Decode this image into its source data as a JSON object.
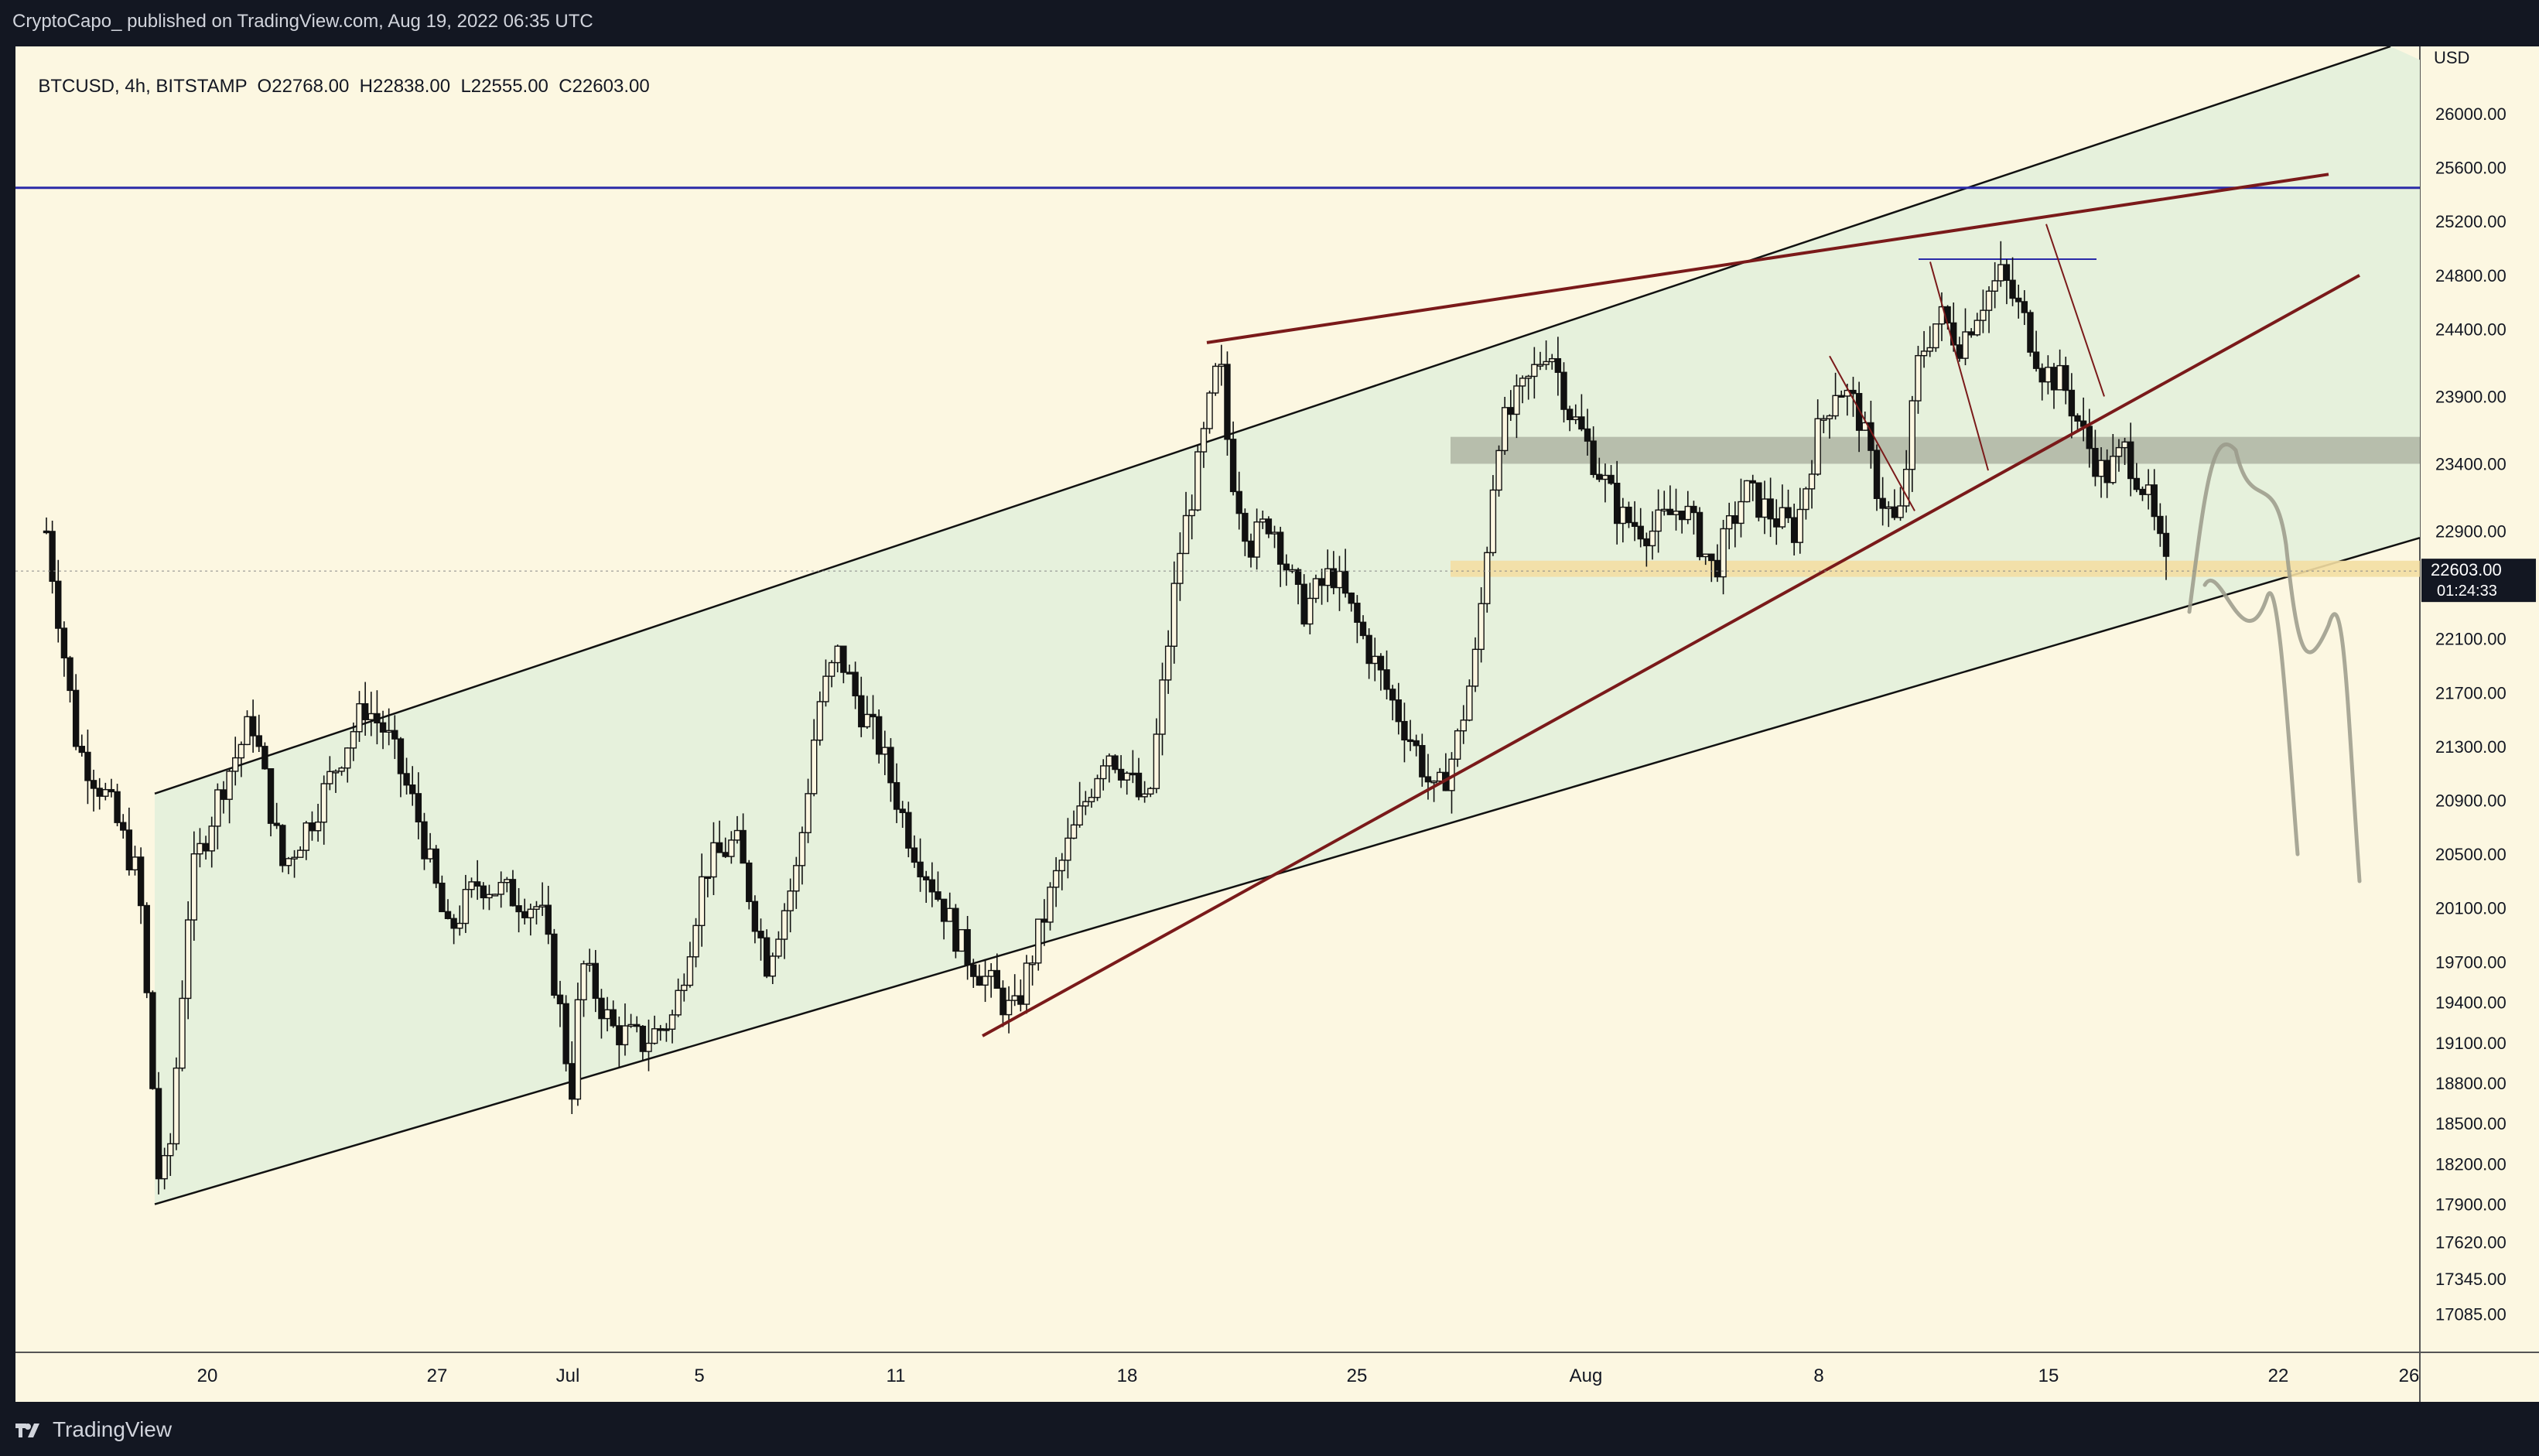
{
  "header": {
    "published_line": "CryptoCapo_  published on TradingView.com, Aug 19, 2022 06:35 UTC"
  },
  "legend": {
    "symbol": "BTCUSD",
    "interval": "4h",
    "exchange": "BITSTAMP",
    "open": "O22768.00",
    "high": "H22838.00",
    "low": "L22555.00",
    "close": "C22603.00"
  },
  "footer": {
    "brand": "TradingView",
    "logo_icon": "tradingview-logo-icon"
  },
  "colors": {
    "background": "#fcf7e1",
    "channel_fill": "#e6f1dc",
    "blue_line": "#2a2aa8",
    "maroon_line": "#7a1a1a",
    "grey_zone": "#a7ac9c",
    "yellow_zone": "#f3dea3",
    "candle": "#111111",
    "drawing": "#9a9a8a"
  },
  "chart_data": {
    "type": "candlestick",
    "symbol": "BTCUSD",
    "currency": "USD",
    "price_axis": {
      "unit": "USD",
      "ticks": [
        "26000.00",
        "25600.00",
        "25200.00",
        "24800.00",
        "24400.00",
        "23900.00",
        "23400.00",
        "22900.00",
        "22100.00",
        "21700.00",
        "21300.00",
        "20900.00",
        "20500.00",
        "20100.00",
        "19700.00",
        "19400.00",
        "19100.00",
        "18800.00",
        "18500.00",
        "18200.00",
        "17900.00",
        "17620.00",
        "17345.00",
        "17085.00"
      ],
      "last_price": "22603.00",
      "countdown": "01:24:33"
    },
    "time_axis": {
      "ticks": [
        "20",
        "27",
        "Jul",
        "5",
        "11",
        "18",
        "25",
        "Aug",
        "8",
        "15",
        "22",
        "26"
      ]
    },
    "candles_close_path": [
      [
        0,
        22900
      ],
      [
        6,
        21300
      ],
      [
        12,
        20900
      ],
      [
        18,
        20300
      ],
      [
        22,
        18000
      ],
      [
        24,
        18300
      ],
      [
        28,
        20300
      ],
      [
        34,
        21000
      ],
      [
        40,
        21500
      ],
      [
        46,
        20400
      ],
      [
        52,
        20800
      ],
      [
        58,
        21300
      ],
      [
        62,
        21600
      ],
      [
        66,
        21400
      ],
      [
        72,
        20800
      ],
      [
        78,
        19900
      ],
      [
        84,
        20300
      ],
      [
        90,
        20200
      ],
      [
        96,
        20100
      ],
      [
        100,
        19300
      ],
      [
        102,
        18700
      ],
      [
        104,
        19700
      ],
      [
        110,
        19200
      ],
      [
        116,
        19100
      ],
      [
        122,
        19300
      ],
      [
        128,
        20400
      ],
      [
        134,
        20600
      ],
      [
        140,
        19700
      ],
      [
        146,
        20400
      ],
      [
        150,
        21600
      ],
      [
        154,
        22000
      ],
      [
        158,
        21600
      ],
      [
        162,
        21300
      ],
      [
        168,
        20600
      ],
      [
        172,
        20300
      ],
      [
        178,
        19800
      ],
      [
        184,
        19500
      ],
      [
        188,
        19300
      ],
      [
        192,
        19800
      ],
      [
        196,
        20300
      ],
      [
        200,
        20700
      ],
      [
        206,
        21300
      ],
      [
        210,
        21100
      ],
      [
        214,
        20800
      ],
      [
        220,
        22700
      ],
      [
        224,
        23400
      ],
      [
        228,
        24200
      ],
      [
        230,
        23400
      ],
      [
        234,
        22800
      ],
      [
        238,
        23000
      ],
      [
        244,
        22300
      ],
      [
        250,
        22600
      ],
      [
        256,
        22100
      ],
      [
        262,
        21600
      ],
      [
        266,
        21300
      ],
      [
        270,
        20900
      ],
      [
        274,
        21300
      ],
      [
        278,
        22000
      ],
      [
        282,
        23600
      ],
      [
        288,
        24000
      ],
      [
        292,
        24300
      ],
      [
        296,
        23800
      ],
      [
        300,
        23500
      ],
      [
        306,
        23000
      ],
      [
        312,
        22900
      ],
      [
        318,
        23100
      ],
      [
        324,
        22600
      ],
      [
        330,
        23200
      ],
      [
        336,
        23000
      ],
      [
        340,
        22900
      ],
      [
        344,
        23600
      ],
      [
        348,
        24000
      ],
      [
        352,
        23800
      ],
      [
        356,
        23200
      ],
      [
        360,
        22900
      ],
      [
        364,
        24200
      ],
      [
        368,
        24500
      ],
      [
        372,
        24300
      ],
      [
        376,
        24600
      ],
      [
        380,
        24800
      ],
      [
        384,
        24500
      ],
      [
        388,
        24100
      ],
      [
        392,
        24000
      ],
      [
        396,
        23600
      ],
      [
        400,
        23300
      ],
      [
        404,
        23500
      ],
      [
        408,
        23200
      ],
      [
        412,
        22600
      ]
    ],
    "trendlines": [
      {
        "name": "ascending channel upper"
      },
      {
        "name": "ascending channel lower"
      },
      {
        "name": "horizontal resistance ~25400"
      },
      {
        "name": "rising wedge upper"
      },
      {
        "name": "rising wedge lower"
      }
    ],
    "zones": [
      {
        "name": "grey resistance zone",
        "from": 23400,
        "to": 23600
      },
      {
        "name": "yellow support zone",
        "from": 22560,
        "to": 22680
      }
    ]
  }
}
